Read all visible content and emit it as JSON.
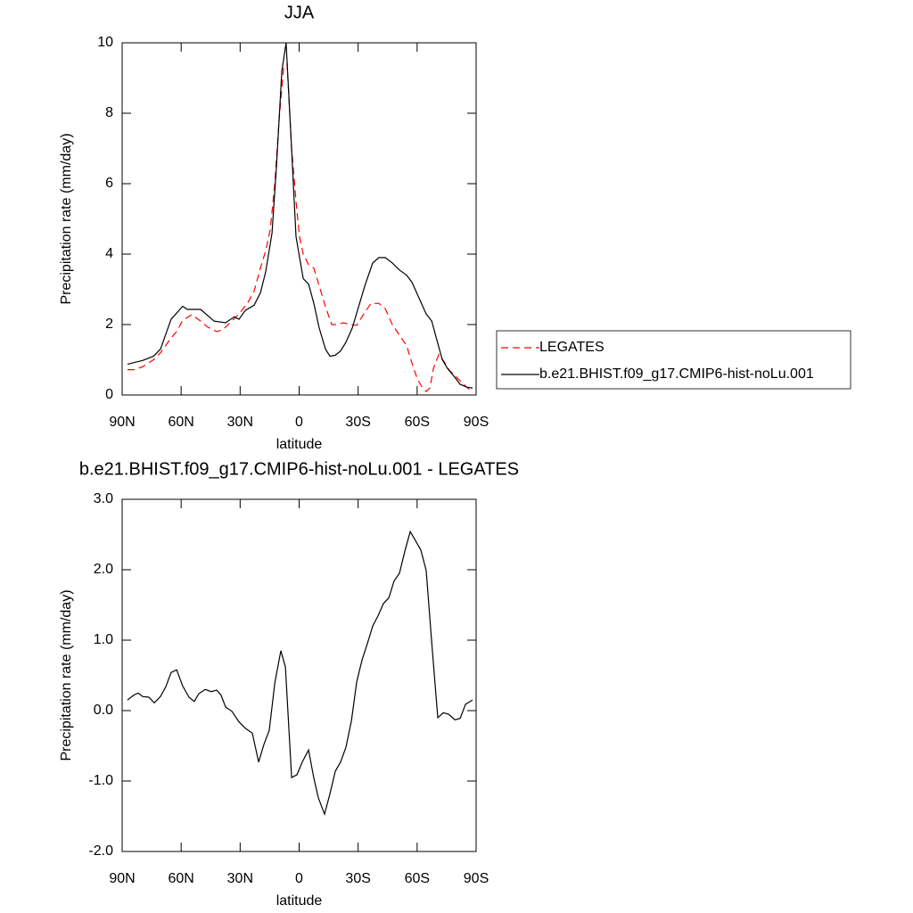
{
  "chart_data": [
    {
      "type": "line",
      "title": "JJA",
      "ylabel": "Precipitation rate (mm/day)",
      "xlabel": "latitude",
      "xlim": [
        90,
        -90
      ],
      "ylim": [
        0,
        10
      ],
      "xticks": [
        {
          "value": 90,
          "label": "90N"
        },
        {
          "value": 60,
          "label": "60N"
        },
        {
          "value": 30,
          "label": "30N"
        },
        0,
        {
          "value": -30,
          "label": "30S"
        },
        {
          "value": -60,
          "label": "60S"
        },
        {
          "value": -90,
          "label": "90S"
        }
      ],
      "yticks": [
        0,
        2,
        4,
        6,
        8,
        10
      ],
      "legend": "right",
      "series": [
        {
          "name": "LEGATES",
          "color": "#ff0000",
          "dash": "dashed",
          "x": [
            87.3,
            84.1,
            79.6,
            74.1,
            70.5,
            65.1,
            62.3,
            59.2,
            54.6,
            50.1,
            46.5,
            41.9,
            38.8,
            35.1,
            30.6,
            26.1,
            22.9,
            19.7,
            17,
            14.7,
            12.4,
            10.2,
            7.9,
            6.1,
            3.8,
            1.6,
            -0.2,
            -2.1,
            -4.8,
            -7.5,
            -10.2,
            -13.4,
            -16.6,
            -19.3,
            -22.5,
            -25.6,
            -29.3,
            -32.9,
            -36.5,
            -40.6,
            -43.8,
            -47.4,
            -51,
            -54.7,
            -57.4,
            -60.1,
            -62.8,
            -64.6,
            -66.5,
            -68.3,
            -71,
            -73.7,
            -76.4,
            -79.2,
            -81.9,
            -84.6,
            -88.2
          ],
          "values": [
            0.72,
            0.72,
            0.8,
            1.0,
            1.2,
            1.62,
            1.8,
            2.12,
            2.28,
            2.1,
            1.93,
            1.8,
            1.85,
            2.05,
            2.3,
            2.62,
            2.95,
            3.6,
            4.1,
            4.7,
            6.0,
            7.8,
            9.3,
            9.4,
            7.0,
            5.5,
            4.5,
            4.0,
            3.7,
            3.6,
            3.1,
            2.5,
            2.0,
            2.0,
            2.05,
            2.0,
            1.98,
            2.3,
            2.6,
            2.6,
            2.45,
            2.0,
            1.7,
            1.4,
            0.9,
            0.45,
            0.2,
            0.1,
            0.2,
            0.75,
            1.15,
            0.95,
            0.7,
            0.55,
            0.4,
            0.25,
            0.08
          ]
        },
        {
          "name": "b.e21.BHIST.f09_g17.CMIP6-hist-noLu.001",
          "color": "#000000",
          "dash": "solid",
          "x": [
            87.3,
            84.1,
            79.6,
            74.1,
            70.5,
            65.1,
            59.2,
            56.9,
            50.1,
            43.3,
            37.4,
            32.9,
            30.6,
            27.4,
            22.9,
            19.7,
            17,
            13.8,
            11.5,
            8.8,
            6.6,
            4.3,
            1.6,
            -2.1,
            -4.8,
            -7.5,
            -10.2,
            -13.4,
            -15.7,
            -18.4,
            -21.1,
            -23.8,
            -27,
            -30.2,
            -33.4,
            -37.4,
            -40.6,
            -43.8,
            -47.4,
            -51,
            -54.7,
            -57.4,
            -61,
            -64.6,
            -67.4,
            -70.1,
            -72.8,
            -75.5,
            -79.2,
            -81.9,
            -85.5,
            -88.2
          ],
          "values": [
            0.87,
            0.92,
            0.98,
            1.1,
            1.3,
            2.15,
            2.52,
            2.43,
            2.43,
            2.1,
            2.05,
            2.22,
            2.15,
            2.4,
            2.55,
            2.9,
            3.5,
            4.6,
            6.5,
            9.2,
            10.0,
            7.5,
            4.5,
            3.3,
            3.15,
            2.6,
            1.9,
            1.3,
            1.1,
            1.13,
            1.25,
            1.5,
            1.9,
            2.5,
            3.1,
            3.75,
            3.9,
            3.9,
            3.75,
            3.55,
            3.4,
            3.2,
            2.75,
            2.3,
            2.1,
            1.55,
            1.0,
            0.75,
            0.5,
            0.3,
            0.22,
            0.2
          ]
        }
      ]
    },
    {
      "type": "line",
      "title": "b.e21.BHIST.f09_g17.CMIP6-hist-noLu.001 - LEGATES",
      "ylabel": "Precipitation rate (mm/day)",
      "xlabel": "latitude",
      "xlim": [
        90,
        -90
      ],
      "ylim": [
        -2,
        3
      ],
      "xticks": [
        {
          "value": 90,
          "label": "90N"
        },
        {
          "value": 60,
          "label": "60N"
        },
        {
          "value": 30,
          "label": "30N"
        },
        0,
        {
          "value": -30,
          "label": "30S"
        },
        {
          "value": -60,
          "label": "60S"
        },
        {
          "value": -90,
          "label": "90S"
        }
      ],
      "yticks": [
        {
          "value": -2,
          "label": "-2.0"
        },
        {
          "value": -1,
          "label": "-1.0"
        },
        {
          "value": 0,
          "label": "0.0"
        },
        {
          "value": 1,
          "label": "1.0"
        },
        {
          "value": 2,
          "label": "2.0"
        },
        {
          "value": 3,
          "label": "3.0"
        }
      ],
      "series": [
        {
          "color": "#000000",
          "dash": "solid",
          "x": [
            87.3,
            84.1,
            81.8,
            79.6,
            76.4,
            73.7,
            70.5,
            67.8,
            65.1,
            62.3,
            59.2,
            56,
            53.3,
            51,
            47.8,
            44.6,
            41.9,
            39.7,
            37.4,
            34.2,
            30.6,
            27.4,
            23.8,
            20.6,
            17.9,
            15.2,
            12.4,
            9.3,
            7,
            3.8,
            1.1,
            -1.6,
            -4.8,
            -7.5,
            -9.8,
            -12.9,
            -15.7,
            -18.4,
            -21.1,
            -23.8,
            -26.6,
            -29.3,
            -32,
            -34.7,
            -37.4,
            -40.2,
            -42.9,
            -45.6,
            -48.3,
            -51,
            -53.8,
            -56.5,
            -59.2,
            -61.9,
            -64.6,
            -67.4,
            -70.5,
            -73.3,
            -76,
            -79.2,
            -81.9,
            -84.6,
            -88.2
          ],
          "values": [
            0.15,
            0.22,
            0.25,
            0.2,
            0.19,
            0.11,
            0.2,
            0.34,
            0.54,
            0.58,
            0.35,
            0.19,
            0.13,
            0.24,
            0.3,
            0.27,
            0.29,
            0.22,
            0.05,
            -0.01,
            -0.16,
            -0.25,
            -0.32,
            -0.73,
            -0.48,
            -0.28,
            0.39,
            0.85,
            0.62,
            -0.95,
            -0.91,
            -0.73,
            -0.56,
            -0.96,
            -1.24,
            -1.47,
            -1.18,
            -0.86,
            -0.73,
            -0.52,
            -0.14,
            0.41,
            0.72,
            0.95,
            1.2,
            1.35,
            1.52,
            1.6,
            1.84,
            1.95,
            2.27,
            2.54,
            2.41,
            2.28,
            1.99,
            0.97,
            -0.1,
            -0.03,
            -0.05,
            -0.13,
            -0.11,
            0.09,
            0.15
          ]
        }
      ]
    }
  ]
}
